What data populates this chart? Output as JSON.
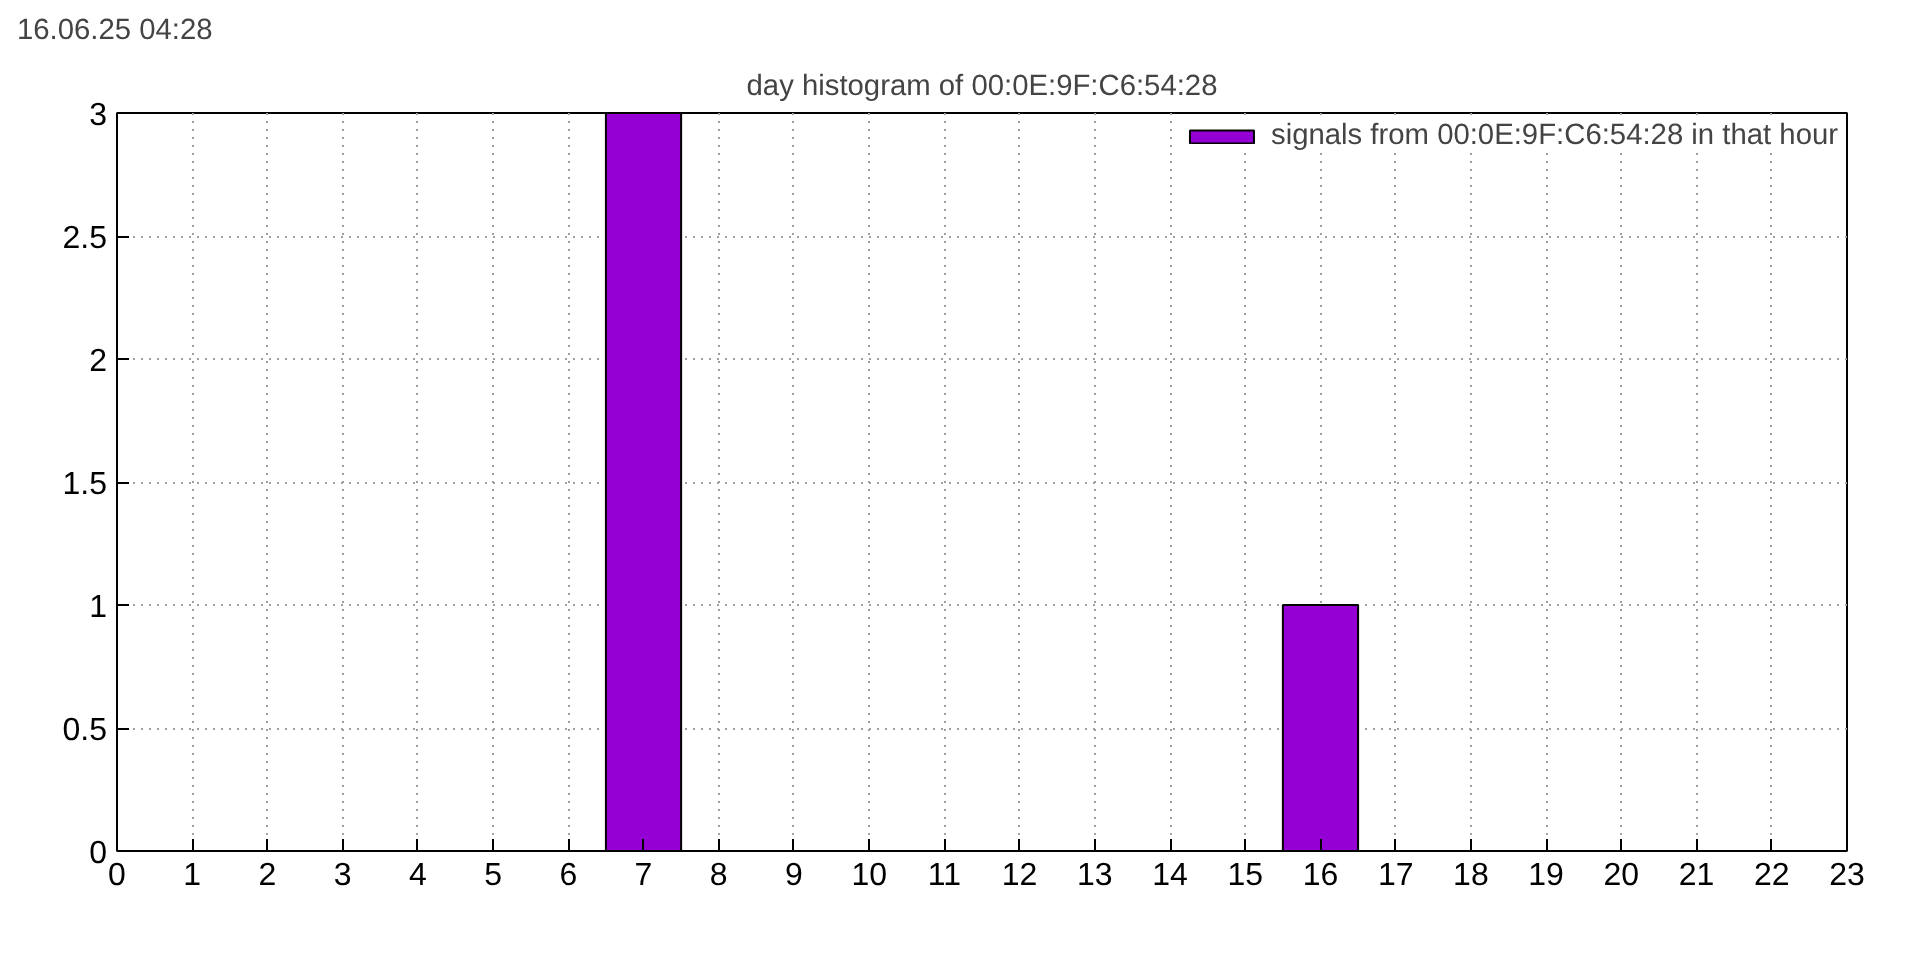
{
  "chart_data": {
    "type": "bar",
    "title": "day histogram of 00:0E:9F:C6:54:28",
    "annotations": [
      "16.06.25 04:28"
    ],
    "x": [
      7,
      16
    ],
    "series": [
      {
        "name": "signals from 00:0E:9F:C6:54:28 in that hour",
        "color": "#9400d3",
        "values": [
          3,
          1
        ]
      }
    ],
    "xlim": [
      0,
      23
    ],
    "xticks": [
      0,
      1,
      2,
      3,
      4,
      5,
      6,
      7,
      8,
      9,
      10,
      11,
      12,
      13,
      14,
      15,
      16,
      17,
      18,
      19,
      20,
      21,
      22,
      23
    ],
    "ylim": [
      0,
      3
    ],
    "yticks": [
      0,
      {
        "value": 0.5,
        "label": "0.5"
      },
      1,
      {
        "value": 1.5,
        "label": "1.5"
      },
      2,
      {
        "value": 2.5,
        "label": "2.5"
      },
      3
    ],
    "grid": true,
    "legend": "top right"
  }
}
